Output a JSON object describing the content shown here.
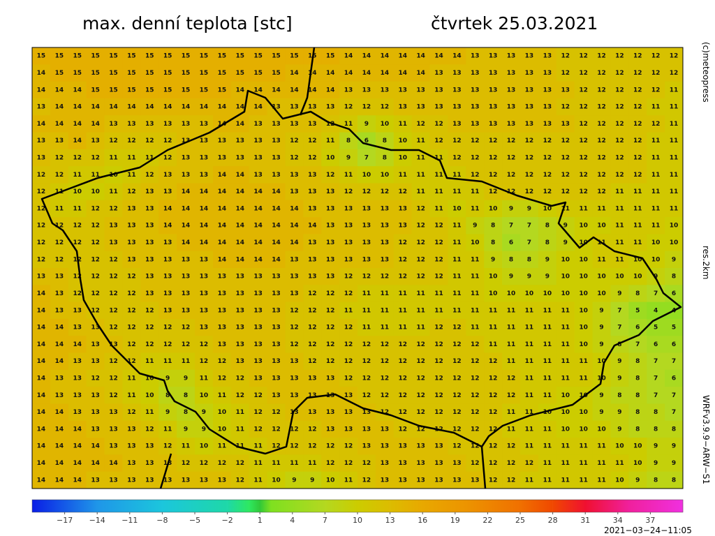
{
  "header": {
    "title": "max. denní teplota [stc]",
    "date": "čtvrtek 25.03.2021"
  },
  "side_labels": {
    "copyright": "(c)meteopress",
    "resolution": "res.2km",
    "model": "WRFv3.9.9−ARW−S1"
  },
  "timestamp": "2021−03−24−11:05",
  "map": {
    "rows": [
      [
        15,
        15,
        15,
        15,
        15,
        15,
        15,
        15,
        15,
        15,
        15,
        15,
        15,
        15,
        15,
        15,
        15,
        14,
        14,
        14,
        14,
        14,
        14,
        14,
        13,
        13,
        13,
        13,
        13,
        12,
        12,
        12,
        12,
        12,
        12,
        12
      ],
      [
        14,
        15,
        15,
        15,
        15,
        15,
        15,
        15,
        15,
        15,
        15,
        15,
        15,
        15,
        14,
        14,
        14,
        14,
        14,
        14,
        14,
        14,
        13,
        13,
        13,
        13,
        13,
        13,
        13,
        12,
        12,
        12,
        12,
        12,
        12,
        12
      ],
      [
        14,
        14,
        14,
        15,
        15,
        15,
        15,
        15,
        15,
        15,
        15,
        14,
        14,
        14,
        14,
        14,
        14,
        13,
        13,
        13,
        13,
        13,
        13,
        13,
        13,
        13,
        13,
        13,
        13,
        13,
        12,
        12,
        12,
        12,
        12,
        11
      ],
      [
        13,
        14,
        14,
        14,
        14,
        14,
        14,
        14,
        14,
        14,
        14,
        14,
        14,
        13,
        13,
        13,
        13,
        12,
        12,
        12,
        13,
        13,
        13,
        13,
        13,
        13,
        13,
        13,
        13,
        12,
        12,
        12,
        12,
        12,
        11,
        11
      ],
      [
        14,
        14,
        14,
        14,
        13,
        13,
        13,
        13,
        13,
        13,
        14,
        14,
        13,
        13,
        13,
        13,
        12,
        11,
        9,
        10,
        11,
        12,
        12,
        13,
        13,
        13,
        13,
        13,
        13,
        13,
        12,
        12,
        12,
        12,
        12,
        11
      ],
      [
        13,
        13,
        14,
        13,
        12,
        12,
        12,
        12,
        13,
        13,
        13,
        13,
        13,
        13,
        12,
        12,
        11,
        8,
        6,
        8,
        10,
        11,
        12,
        12,
        12,
        12,
        12,
        12,
        12,
        12,
        12,
        12,
        12,
        12,
        11,
        11
      ],
      [
        13,
        12,
        12,
        12,
        11,
        11,
        11,
        12,
        13,
        13,
        13,
        13,
        13,
        13,
        12,
        12,
        10,
        9,
        7,
        8,
        10,
        11,
        11,
        12,
        12,
        12,
        12,
        12,
        12,
        12,
        12,
        12,
        12,
        12,
        11,
        11
      ],
      [
        12,
        12,
        11,
        11,
        10,
        11,
        12,
        13,
        13,
        13,
        14,
        14,
        13,
        13,
        13,
        13,
        12,
        11,
        10,
        10,
        11,
        11,
        11,
        11,
        12,
        12,
        12,
        12,
        12,
        12,
        12,
        12,
        12,
        12,
        11,
        11
      ],
      [
        12,
        11,
        10,
        10,
        11,
        12,
        13,
        13,
        14,
        14,
        14,
        14,
        14,
        14,
        13,
        13,
        13,
        12,
        12,
        12,
        12,
        11,
        11,
        11,
        11,
        12,
        12,
        12,
        12,
        12,
        12,
        12,
        11,
        11,
        11,
        11
      ],
      [
        12,
        11,
        11,
        12,
        12,
        13,
        13,
        14,
        14,
        14,
        14,
        14,
        14,
        14,
        14,
        13,
        13,
        13,
        13,
        13,
        13,
        12,
        11,
        10,
        11,
        10,
        9,
        9,
        10,
        11,
        11,
        11,
        11,
        11,
        11,
        11
      ],
      [
        12,
        12,
        12,
        12,
        13,
        13,
        13,
        14,
        14,
        14,
        14,
        14,
        14,
        14,
        14,
        14,
        13,
        13,
        13,
        13,
        13,
        12,
        12,
        11,
        9,
        8,
        7,
        7,
        8,
        9,
        10,
        10,
        11,
        11,
        11,
        10
      ],
      [
        12,
        12,
        12,
        12,
        13,
        13,
        13,
        13,
        14,
        14,
        14,
        14,
        14,
        14,
        14,
        13,
        13,
        13,
        13,
        13,
        12,
        12,
        12,
        11,
        10,
        8,
        6,
        7,
        8,
        9,
        10,
        11,
        11,
        11,
        10,
        10
      ],
      [
        12,
        12,
        12,
        12,
        12,
        13,
        13,
        13,
        13,
        13,
        14,
        14,
        14,
        14,
        13,
        13,
        13,
        13,
        13,
        13,
        12,
        12,
        12,
        11,
        11,
        9,
        8,
        8,
        9,
        10,
        10,
        11,
        11,
        10,
        10,
        9
      ],
      [
        13,
        13,
        12,
        12,
        12,
        12,
        13,
        13,
        13,
        13,
        13,
        13,
        13,
        13,
        13,
        13,
        13,
        12,
        12,
        12,
        12,
        12,
        12,
        11,
        11,
        10,
        9,
        9,
        9,
        10,
        10,
        10,
        10,
        10,
        9,
        8
      ],
      [
        14,
        13,
        12,
        12,
        12,
        12,
        13,
        13,
        13,
        13,
        13,
        13,
        13,
        13,
        13,
        12,
        12,
        12,
        11,
        11,
        11,
        11,
        11,
        11,
        11,
        10,
        10,
        10,
        10,
        10,
        10,
        10,
        9,
        8,
        7,
        6
      ],
      [
        14,
        13,
        13,
        12,
        12,
        12,
        12,
        13,
        13,
        13,
        13,
        13,
        13,
        13,
        12,
        12,
        12,
        11,
        11,
        11,
        11,
        11,
        11,
        11,
        11,
        11,
        11,
        11,
        11,
        11,
        10,
        9,
        7,
        5,
        4,
        4
      ],
      [
        14,
        14,
        13,
        13,
        12,
        12,
        12,
        12,
        12,
        13,
        13,
        13,
        13,
        13,
        12,
        12,
        12,
        12,
        11,
        11,
        11,
        11,
        12,
        12,
        11,
        11,
        11,
        11,
        11,
        11,
        10,
        9,
        7,
        6,
        5,
        5
      ],
      [
        14,
        14,
        14,
        13,
        13,
        12,
        12,
        12,
        12,
        12,
        13,
        13,
        13,
        13,
        12,
        12,
        12,
        12,
        12,
        12,
        12,
        12,
        12,
        12,
        12,
        11,
        11,
        11,
        11,
        11,
        10,
        9,
        8,
        7,
        6,
        6
      ],
      [
        14,
        14,
        13,
        13,
        12,
        12,
        11,
        11,
        11,
        12,
        12,
        13,
        13,
        13,
        13,
        12,
        12,
        12,
        12,
        12,
        12,
        12,
        12,
        12,
        12,
        12,
        11,
        11,
        11,
        11,
        11,
        10,
        9,
        8,
        7,
        7
      ],
      [
        14,
        13,
        13,
        12,
        12,
        11,
        10,
        9,
        9,
        11,
        12,
        12,
        13,
        13,
        13,
        13,
        13,
        12,
        12,
        12,
        12,
        12,
        12,
        12,
        12,
        12,
        12,
        11,
        11,
        11,
        11,
        10,
        9,
        8,
        7,
        6
      ],
      [
        14,
        13,
        13,
        13,
        12,
        11,
        10,
        8,
        8,
        10,
        11,
        12,
        12,
        13,
        13,
        13,
        13,
        13,
        12,
        12,
        12,
        12,
        12,
        12,
        12,
        12,
        12,
        11,
        11,
        10,
        10,
        9,
        8,
        8,
        7,
        7
      ],
      [
        14,
        14,
        13,
        13,
        13,
        12,
        11,
        9,
        8,
        9,
        10,
        11,
        12,
        12,
        13,
        13,
        13,
        13,
        13,
        12,
        12,
        12,
        12,
        12,
        12,
        12,
        11,
        11,
        10,
        10,
        10,
        9,
        9,
        8,
        8,
        7
      ],
      [
        14,
        14,
        14,
        13,
        13,
        13,
        12,
        11,
        9,
        9,
        10,
        11,
        12,
        12,
        12,
        12,
        13,
        13,
        13,
        13,
        12,
        12,
        12,
        12,
        12,
        12,
        11,
        11,
        11,
        10,
        10,
        10,
        9,
        8,
        8,
        8
      ],
      [
        14,
        14,
        14,
        14,
        13,
        13,
        13,
        12,
        11,
        10,
        11,
        11,
        11,
        12,
        12,
        12,
        12,
        12,
        13,
        13,
        13,
        13,
        13,
        12,
        12,
        12,
        12,
        11,
        11,
        11,
        11,
        11,
        10,
        10,
        9,
        9
      ],
      [
        14,
        14,
        14,
        14,
        14,
        13,
        13,
        13,
        12,
        12,
        12,
        12,
        11,
        11,
        11,
        11,
        12,
        12,
        12,
        13,
        13,
        13,
        13,
        13,
        12,
        12,
        12,
        12,
        11,
        11,
        11,
        11,
        11,
        10,
        9,
        9
      ],
      [
        14,
        14,
        14,
        13,
        13,
        13,
        13,
        13,
        13,
        13,
        13,
        12,
        11,
        10,
        9,
        9,
        10,
        11,
        12,
        13,
        13,
        13,
        13,
        13,
        13,
        12,
        12,
        11,
        11,
        11,
        11,
        11,
        10,
        9,
        8,
        8
      ]
    ]
  },
  "colorbar": {
    "clim": [
      -20,
      40
    ],
    "ticks": [
      {
        "value": -17,
        "label": "−17"
      },
      {
        "value": -14,
        "label": "−14"
      },
      {
        "value": -11,
        "label": "−11"
      },
      {
        "value": -8,
        "label": "−8"
      },
      {
        "value": -5,
        "label": "−5"
      },
      {
        "value": -2,
        "label": "−2"
      },
      1,
      4,
      7,
      10,
      13,
      16,
      19,
      22,
      25,
      28,
      31,
      34,
      37
    ],
    "stops": [
      {
        "value": -20,
        "color": "#0a1ee6"
      },
      {
        "value": -14,
        "color": "#1f96e8"
      },
      {
        "value": -8,
        "color": "#1cc6dc"
      },
      {
        "value": -2,
        "color": "#1ed8a8"
      },
      {
        "value": 0,
        "color": "#2ee860"
      },
      {
        "value": 1,
        "color": "#30c838"
      },
      {
        "value": 2,
        "color": "#7ee020"
      },
      {
        "value": 7,
        "color": "#b4d820"
      },
      {
        "value": 10,
        "color": "#cccc00"
      },
      {
        "value": 13,
        "color": "#dcbc00"
      },
      {
        "value": 16,
        "color": "#e8a800"
      },
      {
        "value": 20,
        "color": "#ec9400"
      },
      {
        "value": 25,
        "color": "#f07000"
      },
      {
        "value": 28,
        "color": "#f04800"
      },
      {
        "value": 31,
        "color": "#f01030"
      },
      {
        "value": 35,
        "color": "#f0209c"
      },
      {
        "value": 40,
        "color": "#f030e0"
      }
    ]
  }
}
